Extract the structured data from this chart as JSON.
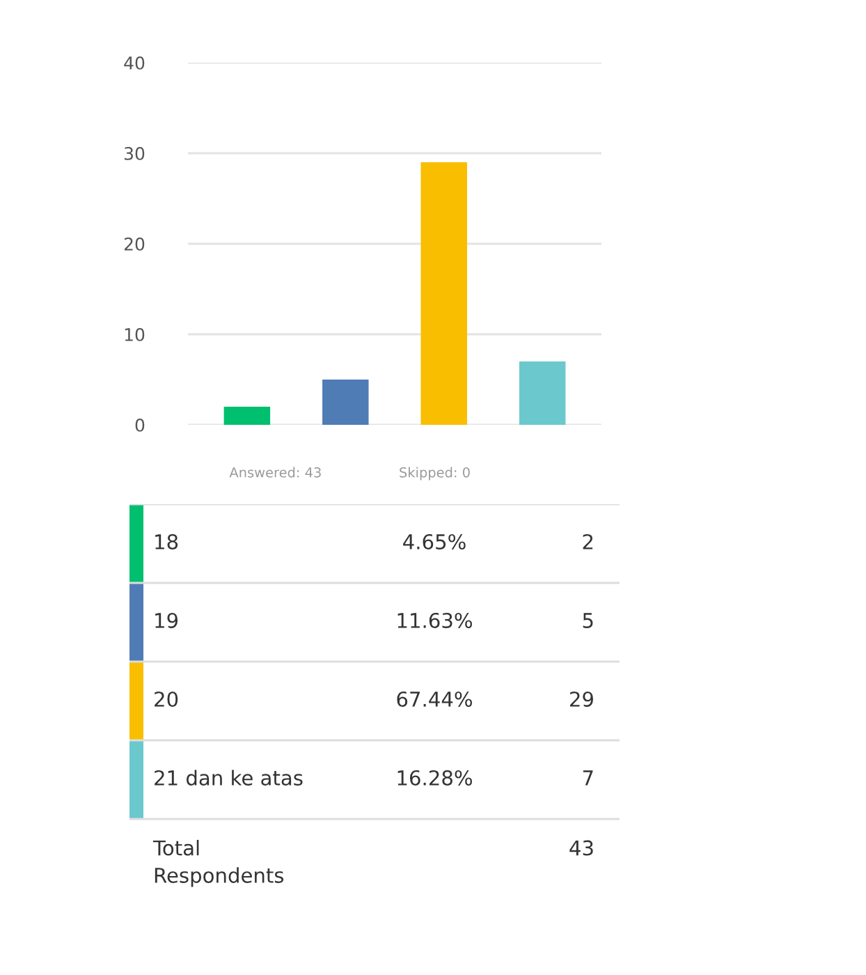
{
  "chart_data": [
    {
      "type": "bar",
      "categories": [
        null,
        null,
        null,
        null
      ],
      "values": [
        2,
        5,
        29,
        7
      ],
      "colors": [
        "#00bf6f",
        "#507cb6",
        "#f9be00",
        "#6bc8cd"
      ],
      "ylim": [
        0,
        40
      ],
      "yticks": [
        0,
        10,
        20,
        30,
        40
      ],
      "grid": "y",
      "tick_labels": "y",
      "annotations": [
        "Answered: 43",
        "Skipped: 0"
      ]
    },
    {
      "type": "other",
      "colors": [
        "#00bf6f",
        "#507cb6",
        "#f9be00",
        "#6bc8cd"
      ],
      "annotations": [
        "18",
        "4.65%",
        "2",
        "19",
        "11.63%",
        "5",
        "20",
        "67.44%",
        "29",
        "21 dan ke atas",
        "16.28%",
        "7",
        "Total\nRespondents",
        "43"
      ]
    }
  ]
}
